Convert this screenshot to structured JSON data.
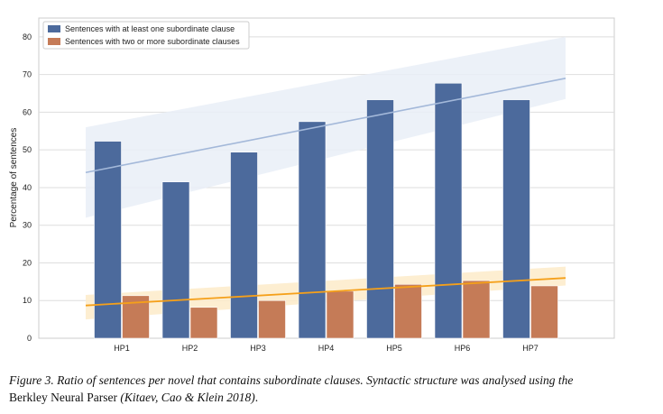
{
  "chart_data": {
    "type": "bar",
    "categories": [
      "HP1",
      "HP2",
      "HP3",
      "HP4",
      "HP5",
      "HP6",
      "HP7"
    ],
    "series": [
      {
        "name": "Sentences with at least one subordinate clause",
        "values": [
          52.3,
          41.5,
          49.4,
          57.5,
          63.3,
          67.7,
          63.3
        ],
        "color": "#4c6a9c"
      },
      {
        "name": "Sentences with two or more subordinate clauses",
        "values": [
          11.3,
          8.2,
          10.0,
          12.5,
          14.3,
          15.3,
          13.9
        ],
        "color": "#c57b57"
      }
    ],
    "trendlines": [
      {
        "series": "Sentences with at least one subordinate clause",
        "start": 44.0,
        "end": 69.0,
        "color": "#a3b8d9",
        "band_color": "#e9eef7",
        "band": {
          "low_start": 32.0,
          "high_start": 56.0,
          "low_end": 63.5,
          "high_end": 80.0
        }
      },
      {
        "series": "Sentences with two or more subordinate clauses",
        "start": 8.7,
        "end": 16.0,
        "color": "#f5a01a",
        "band_color": "#fdebc9",
        "band": {
          "low_start": 5.0,
          "high_start": 11.5,
          "low_end": 14.0,
          "high_end": 19.0
        }
      }
    ],
    "title": "",
    "xlabel": "",
    "ylabel": "Percentage of sentences",
    "ylim": [
      0,
      85
    ],
    "yticks": [
      0,
      10,
      20,
      30,
      40,
      50,
      60,
      70,
      80
    ],
    "grid": true,
    "legend_position": "top-left"
  },
  "caption": {
    "figure_label": "Figure 3",
    "text_italic": ". Ratio of sentences per novel that contains subordinate clauses. Syntactic structure was analysed using the",
    "text_line2": "Berkley Neural Parser ",
    "citation": "(Kitaev, Cao & Klein 2018)",
    "end": "."
  }
}
